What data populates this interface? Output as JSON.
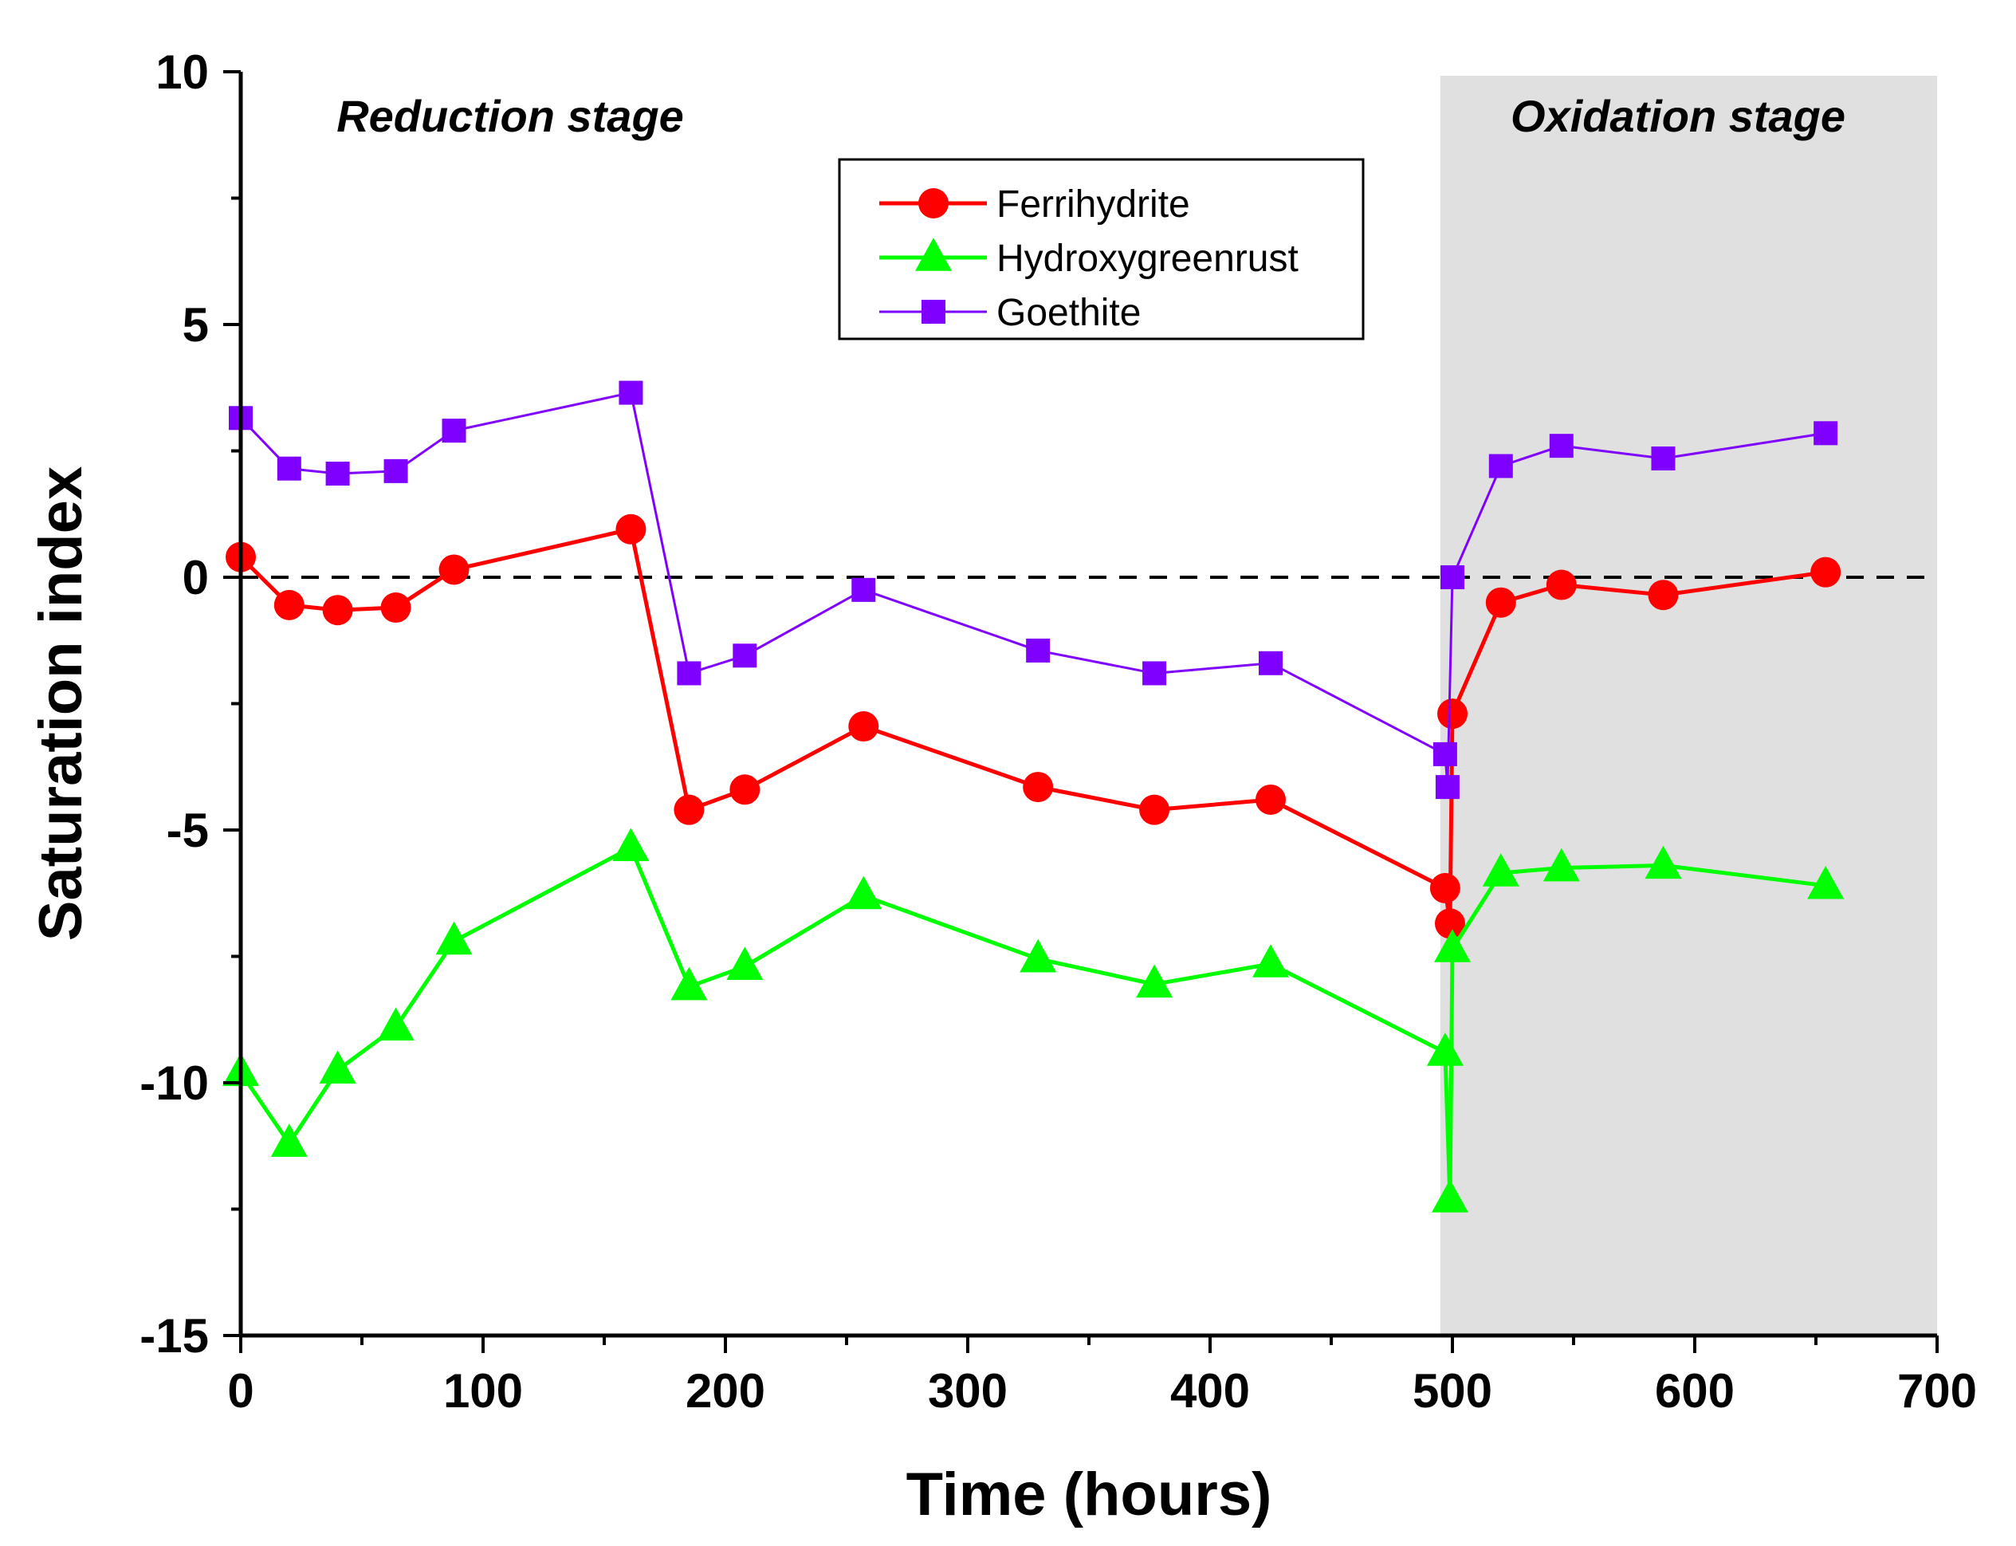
{
  "chart_data": {
    "type": "line",
    "xlabel": "Time (hours)",
    "ylabel": "Saturation index",
    "xlim": [
      0,
      700
    ],
    "ylim": [
      -15,
      10
    ],
    "xticks": [
      0,
      100,
      200,
      300,
      400,
      500,
      600,
      700
    ],
    "xtick_labels": [
      "0",
      "100",
      "200",
      "300",
      "400",
      "500",
      "600",
      "700"
    ],
    "yticks": [
      -15,
      -10,
      -5,
      0,
      5,
      10
    ],
    "ytick_labels": [
      "-15",
      "-10",
      "-5",
      "0",
      "5",
      "10"
    ],
    "reference_line": {
      "y": 0,
      "style": "dashed"
    },
    "regions": [
      {
        "label": "Reduction stage",
        "x_start": 0,
        "x_end": 495,
        "shaded": false
      },
      {
        "label": "Oxidation stage",
        "x_start": 495,
        "x_end": 700,
        "shaded": true,
        "color": "#e0e0e0"
      }
    ],
    "legend_position": "top-center",
    "series": [
      {
        "name": "Ferrihydrite",
        "color": "#ff0000",
        "marker": "circle",
        "x": [
          0,
          20,
          40,
          64,
          88,
          161,
          185,
          208,
          257,
          329,
          377,
          425,
          497,
          499,
          500,
          520,
          545,
          587,
          654
        ],
        "y": [
          0.4,
          -0.55,
          -0.65,
          -0.6,
          0.15,
          0.95,
          -4.6,
          -4.2,
          -2.95,
          -4.15,
          -4.6,
          -4.4,
          -6.15,
          -6.85,
          -2.7,
          -0.5,
          -0.15,
          -0.35,
          0.1
        ]
      },
      {
        "name": "Hydroxygreenrust",
        "color": "#00ff00",
        "marker": "triangle",
        "x": [
          0,
          20,
          40,
          64,
          88,
          161,
          185,
          208,
          257,
          329,
          377,
          425,
          497,
          499,
          500,
          520,
          545,
          587,
          654
        ],
        "y": [
          -9.8,
          -11.2,
          -9.75,
          -8.9,
          -7.2,
          -5.35,
          -8.1,
          -7.7,
          -6.3,
          -7.55,
          -8.05,
          -7.65,
          -9.4,
          -12.3,
          -7.35,
          -5.85,
          -5.75,
          -5.7,
          -6.1
        ]
      },
      {
        "name": "Goethite",
        "color": "#7f00ff",
        "marker": "square",
        "x": [
          0,
          20,
          40,
          64,
          88,
          161,
          185,
          208,
          257,
          329,
          377,
          425,
          497,
          498,
          500,
          520,
          545,
          587,
          654
        ],
        "y": [
          3.15,
          2.15,
          2.05,
          2.1,
          2.9,
          3.65,
          -1.9,
          -1.55,
          -0.25,
          -1.45,
          -1.9,
          -1.7,
          -3.5,
          -4.15,
          0.0,
          2.2,
          2.6,
          2.35,
          2.85
        ]
      }
    ]
  }
}
